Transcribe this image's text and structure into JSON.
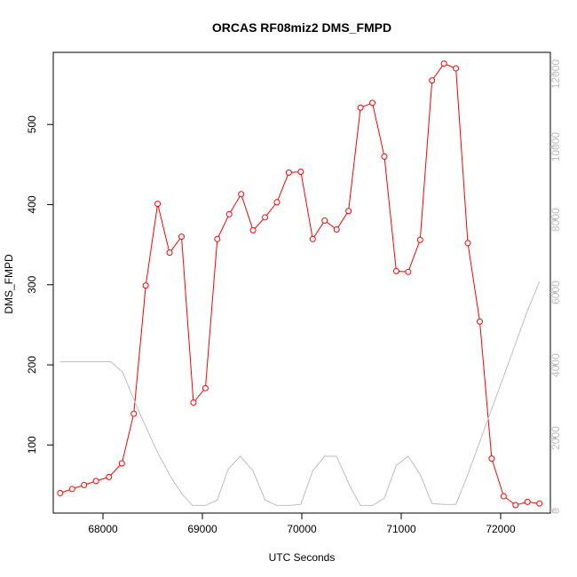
{
  "chart_data": {
    "type": "line",
    "title": "ORCAS RF08miz2 DMS_FMPD",
    "xlabel": "UTC Seconds",
    "ylabel": "DMS_FMPD",
    "xlim": [
      67500,
      72500
    ],
    "ylim": [
      15,
      590
    ],
    "y2lim": [
      -60,
      12600
    ],
    "x_ticks": [
      68000,
      69000,
      70000,
      71000,
      72000
    ],
    "y_ticks": [
      100,
      200,
      300,
      400,
      500
    ],
    "y2_ticks": [
      0,
      2000,
      4000,
      6000,
      8000,
      10000,
      12000
    ],
    "grid": false,
    "legend": "none",
    "series": [
      {
        "axis": "left",
        "color": "#ff0000",
        "marker": "open-circle",
        "points": [
          [
            67570,
            40
          ],
          [
            67690,
            45
          ],
          [
            67810,
            50
          ],
          [
            67930,
            55
          ],
          [
            68060,
            60
          ],
          [
            68190,
            77
          ],
          [
            68310,
            139
          ],
          [
            68430,
            299
          ],
          [
            68550,
            401
          ],
          [
            68670,
            340
          ],
          [
            68790,
            360
          ],
          [
            68910,
            153
          ],
          [
            69030,
            171
          ],
          [
            69150,
            357
          ],
          [
            69270,
            388
          ],
          [
            69390,
            413
          ],
          [
            69510,
            368
          ],
          [
            69630,
            384
          ],
          [
            69750,
            403
          ],
          [
            69870,
            440
          ],
          [
            69990,
            441
          ],
          [
            70110,
            357
          ],
          [
            70230,
            380
          ],
          [
            70350,
            369
          ],
          [
            70470,
            392
          ],
          [
            70590,
            521
          ],
          [
            70710,
            527
          ],
          [
            70830,
            460
          ],
          [
            70950,
            317
          ],
          [
            71070,
            316
          ],
          [
            71190,
            356
          ],
          [
            71310,
            555
          ],
          [
            71430,
            576
          ],
          [
            71550,
            570
          ],
          [
            71670,
            352
          ],
          [
            71790,
            254
          ],
          [
            71910,
            83
          ],
          [
            72030,
            36
          ],
          [
            72150,
            25
          ],
          [
            72270,
            29
          ],
          [
            72390,
            27
          ]
        ]
      },
      {
        "axis": "right",
        "color": "#bebebe",
        "marker": "none",
        "points": [
          [
            67570,
            4100
          ],
          [
            68080,
            4100
          ],
          [
            68200,
            3800
          ],
          [
            68350,
            2800
          ],
          [
            68550,
            1600
          ],
          [
            68700,
            850
          ],
          [
            68800,
            450
          ],
          [
            68900,
            150
          ],
          [
            69030,
            150
          ],
          [
            69150,
            300
          ],
          [
            69260,
            1150
          ],
          [
            69380,
            1500
          ],
          [
            69510,
            1100
          ],
          [
            69630,
            300
          ],
          [
            69750,
            150
          ],
          [
            69880,
            150
          ],
          [
            69990,
            180
          ],
          [
            70110,
            1100
          ],
          [
            70230,
            1500
          ],
          [
            70350,
            1500
          ],
          [
            70480,
            700
          ],
          [
            70590,
            150
          ],
          [
            70710,
            150
          ],
          [
            70830,
            350
          ],
          [
            70950,
            1250
          ],
          [
            71070,
            1500
          ],
          [
            71190,
            1000
          ],
          [
            71310,
            200
          ],
          [
            71430,
            180
          ],
          [
            71550,
            180
          ],
          [
            71670,
            1000
          ],
          [
            71790,
            1900
          ],
          [
            71910,
            2800
          ],
          [
            72030,
            3700
          ],
          [
            72150,
            4600
          ],
          [
            72270,
            5500
          ],
          [
            72390,
            6300
          ]
        ]
      }
    ]
  }
}
